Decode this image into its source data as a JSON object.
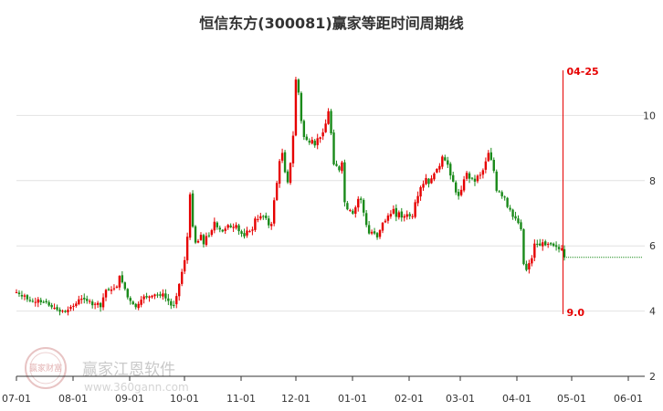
{
  "chart_data": {
    "type": "candlestick",
    "title": "恒信东方(300081)赢家等距时间周期线",
    "xlabel": "",
    "ylabel": "",
    "ylim": [
      2,
      12
    ],
    "y_ticks": [
      2,
      4,
      6,
      8,
      10
    ],
    "x_tick_labels": [
      "07-01",
      "08-01",
      "09-01",
      "10-01",
      "11-01",
      "12-01",
      "01-01",
      "02-01",
      "03-01",
      "04-01",
      "05-01",
      "06-01"
    ],
    "x_tick_days": [
      0,
      31,
      62,
      92,
      123,
      153,
      184,
      215,
      243,
      274,
      304,
      335
    ],
    "grid": "horizontal",
    "colors": {
      "up": "#e60000",
      "down": "#1a8a1a",
      "cycle_line": "#e60000",
      "projection": "#1a8a1a"
    },
    "closes": [
      4.58,
      4.52,
      4.45,
      4.48,
      4.36,
      4.31,
      4.3,
      4.28,
      4.36,
      4.27,
      4.28,
      4.27,
      4.17,
      4.12,
      4.1,
      4.04,
      3.98,
      4.01,
      3.97,
      4.04,
      4.13,
      4.16,
      4.23,
      4.36,
      4.38,
      4.36,
      4.31,
      4.31,
      4.18,
      4.22,
      4.25,
      4.12,
      4.42,
      4.65,
      4.64,
      4.66,
      4.7,
      4.75,
      5.08,
      4.88,
      4.68,
      4.42,
      4.31,
      4.21,
      4.12,
      4.22,
      4.35,
      4.45,
      4.42,
      4.45,
      4.47,
      4.51,
      4.49,
      4.47,
      4.54,
      4.39,
      4.31,
      4.17,
      4.18,
      4.46,
      4.83,
      5.2,
      5.56,
      6.28,
      7.58,
      6.59,
      6.1,
      6.15,
      6.34,
      6.05,
      6.3,
      6.32,
      6.48,
      6.74,
      6.57,
      6.5,
      6.44,
      6.53,
      6.64,
      6.57,
      6.58,
      6.64,
      6.45,
      6.37,
      6.29,
      6.47,
      6.45,
      6.5,
      6.84,
      6.82,
      6.91,
      6.9,
      6.85,
      6.63,
      6.67,
      7.4,
      7.93,
      8.6,
      8.85,
      8.26,
      7.95,
      8.54,
      9.38,
      11.1,
      10.7,
      9.83,
      9.34,
      9.25,
      9.17,
      9.25,
      9.08,
      9.3,
      9.33,
      9.48,
      9.75,
      10.13,
      9.45,
      8.5,
      8.45,
      8.32,
      8.56,
      7.34,
      7.12,
      7.1,
      6.99,
      7.18,
      7.44,
      7.41,
      7.02,
      6.64,
      6.38,
      6.43,
      6.38,
      6.26,
      6.48,
      6.71,
      6.77,
      6.93,
      6.98,
      7.13,
      6.89,
      7.03,
      6.87,
      6.91,
      6.97,
      6.91,
      6.91,
      7.34,
      7.53,
      7.8,
      7.9,
      8.08,
      7.9,
      8.07,
      8.22,
      8.36,
      8.45,
      8.74,
      8.62,
      8.49,
      8.16,
      7.97,
      7.64,
      7.53,
      7.72,
      8.04,
      8.24,
      8.06,
      8.07,
      7.97,
      8.15,
      8.18,
      8.32,
      8.59,
      8.85,
      8.64,
      8.3,
      7.69,
      7.67,
      7.52,
      7.49,
      7.19,
      7.11,
      6.89,
      6.84,
      6.7,
      6.51,
      5.44,
      5.26,
      5.47,
      5.62,
      6.07,
      6.06,
      6.01,
      6.11,
      6.02,
      6.06,
      6.05,
      6.0,
      5.97,
      5.9,
      5.92,
      5.65
    ],
    "last_bar_day": 300,
    "cycle_line": {
      "label_top": "04-25",
      "label_bottom": "9.0",
      "day": 299
    },
    "projection_level": 5.65,
    "projection_end_day": 343
  },
  "watermark": {
    "text": "赢家江恩软件",
    "url": "www.360gann.com",
    "logo": "赢家财富"
  }
}
